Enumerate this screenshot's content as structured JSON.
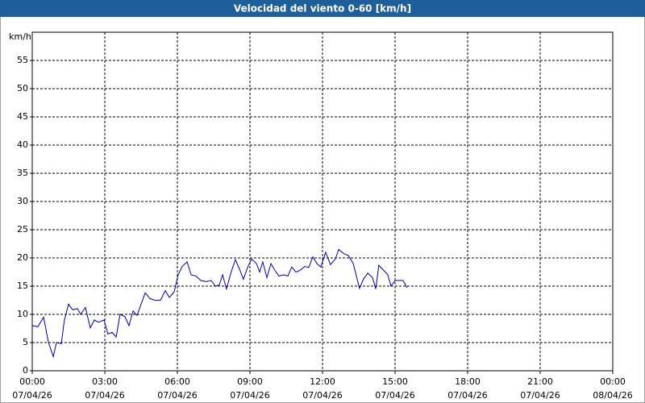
{
  "chart_data": {
    "type": "line",
    "title": "Velocidad del viento 0-60 [km/h]",
    "y_label": "km/h",
    "xlim": [
      0,
      24
    ],
    "ylim": [
      0,
      60
    ],
    "xticks": [
      {
        "value": 0,
        "label": "00:00"
      },
      {
        "value": 3,
        "label": "03:00"
      },
      {
        "value": 6,
        "label": "06:00"
      },
      {
        "value": 9,
        "label": "09:00"
      },
      {
        "value": 12,
        "label": "12:00"
      },
      {
        "value": 15,
        "label": "15:00"
      },
      {
        "value": 18,
        "label": "18:00"
      },
      {
        "value": 21,
        "label": "21:00"
      },
      {
        "value": 24,
        "label": "00:00"
      }
    ],
    "xtick_dates": [
      "07/04/26",
      "07/04/26",
      "07/04/26",
      "07/04/26",
      "07/04/26",
      "07/04/26",
      "07/04/26",
      "07/04/26",
      "08/04/26"
    ],
    "yticks": [
      0,
      5,
      10,
      15,
      20,
      25,
      30,
      35,
      40,
      45,
      50,
      55
    ],
    "grid": true,
    "x": [
      0,
      0.23,
      0.47,
      0.67,
      0.87,
      1.0,
      1.2,
      1.33,
      1.5,
      1.67,
      1.87,
      2.0,
      2.2,
      2.4,
      2.57,
      2.73,
      2.97,
      3.13,
      3.3,
      3.47,
      3.63,
      3.83,
      4.0,
      4.17,
      4.33,
      4.5,
      4.67,
      4.87,
      5.07,
      5.3,
      5.5,
      5.67,
      5.87,
      6.03,
      6.2,
      6.4,
      6.57,
      6.77,
      6.97,
      7.2,
      7.4,
      7.57,
      7.73,
      7.87,
      8.03,
      8.23,
      8.4,
      8.57,
      8.73,
      8.9,
      9.07,
      9.27,
      9.4,
      9.53,
      9.7,
      9.87,
      10.03,
      10.2,
      10.4,
      10.57,
      10.73,
      10.9,
      11.07,
      11.27,
      11.43,
      11.6,
      11.77,
      11.93,
      12.13,
      12.33,
      12.53,
      12.67,
      12.87,
      13.07,
      13.27,
      13.53,
      13.7,
      13.87,
      14.07,
      14.2,
      14.33,
      14.53,
      14.7,
      14.83,
      15.0,
      15.17,
      15.33,
      15.5
    ],
    "series": [
      {
        "name": "Velocidad del viento",
        "color": "#0000a0",
        "values": [
          8,
          7.8,
          9.5,
          5,
          2.5,
          5,
          4.8,
          9,
          11.8,
          10.8,
          11,
          10,
          11.2,
          7.6,
          9,
          8.6,
          9,
          6.5,
          6.8,
          6,
          10,
          9.6,
          8,
          10.6,
          9.8,
          11.8,
          13.8,
          12.8,
          12.5,
          12.5,
          14.2,
          13,
          14,
          17,
          18.5,
          19.3,
          17,
          16.8,
          16,
          15.8,
          16,
          15,
          15.2,
          17,
          14.5,
          17.6,
          19.7,
          18,
          16.2,
          18.3,
          19.8,
          19,
          17.5,
          19.3,
          16.5,
          19,
          17.8,
          16.8,
          17,
          16.8,
          18.4,
          17.5,
          17.8,
          18.5,
          18.3,
          20.2,
          19,
          18.4,
          21,
          18.8,
          19.8,
          21.5,
          20.8,
          20.4,
          19,
          14.6,
          16.3,
          17.3,
          16.5,
          14.5,
          18.7,
          17.8,
          17,
          15,
          16,
          16,
          16,
          14.7
        ]
      }
    ]
  }
}
